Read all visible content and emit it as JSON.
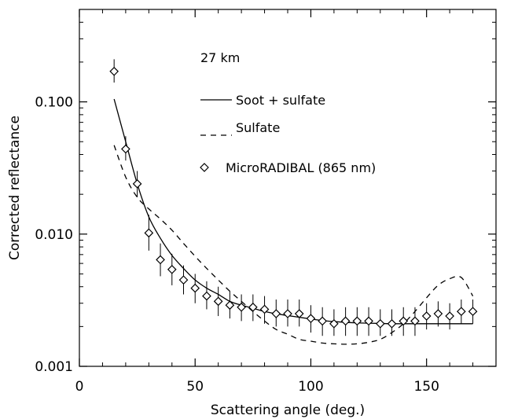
{
  "chart_data": {
    "type": "line",
    "annotation": "27 km",
    "xlabel": "Scattering angle (deg.)",
    "ylabel": "Corrected reflectance",
    "xlim": [
      0,
      180
    ],
    "ylim": [
      0.001,
      0.5
    ],
    "yscale": "log",
    "x_ticks": [
      0,
      50,
      100,
      150
    ],
    "y_ticks": [
      0.001,
      0.01,
      0.1
    ],
    "y_tick_labels": [
      "0.001",
      "0.010",
      "0.100"
    ],
    "legend_position": "top-right",
    "series": [
      {
        "name": "Soot + sulfate",
        "style": "solid",
        "x": [
          15,
          20,
          25,
          30,
          35,
          40,
          45,
          50,
          55,
          60,
          65,
          70,
          75,
          80,
          85,
          90,
          95,
          100,
          105,
          110,
          115,
          120,
          125,
          130,
          135,
          140,
          145,
          150,
          155,
          160,
          165,
          170
        ],
        "y": [
          0.105,
          0.05,
          0.024,
          0.0135,
          0.0093,
          0.0069,
          0.0055,
          0.0045,
          0.0039,
          0.0035,
          0.0031,
          0.0029,
          0.00275,
          0.0026,
          0.0025,
          0.00242,
          0.00235,
          0.00228,
          0.00222,
          0.00218,
          0.00215,
          0.00213,
          0.00212,
          0.00211,
          0.0021,
          0.0021,
          0.0021,
          0.0021,
          0.0021,
          0.0021,
          0.0021,
          0.0021
        ]
      },
      {
        "name": "Sulfate",
        "style": "dashed",
        "x": [
          15,
          20,
          25,
          30,
          35,
          40,
          45,
          50,
          55,
          60,
          65,
          70,
          75,
          80,
          85,
          90,
          95,
          100,
          105,
          110,
          115,
          120,
          125,
          130,
          135,
          140,
          145,
          150,
          155,
          160,
          165,
          170
        ],
        "y": [
          0.047,
          0.027,
          0.019,
          0.0155,
          0.013,
          0.0107,
          0.0085,
          0.0068,
          0.0055,
          0.0045,
          0.0037,
          0.0031,
          0.0026,
          0.0022,
          0.0019,
          0.00175,
          0.0016,
          0.00155,
          0.0015,
          0.00148,
          0.00147,
          0.00148,
          0.00152,
          0.0016,
          0.0018,
          0.0021,
          0.0026,
          0.0033,
          0.0041,
          0.0046,
          0.0047,
          0.0034
        ]
      },
      {
        "name": "MicroRADIBAL (865 nm)",
        "style": "markers",
        "marker": "diamond",
        "x": [
          15,
          20,
          25,
          30,
          35,
          40,
          45,
          50,
          55,
          60,
          65,
          70,
          75,
          80,
          85,
          90,
          95,
          100,
          105,
          110,
          115,
          120,
          125,
          130,
          135,
          140,
          145,
          150,
          155,
          160,
          165,
          170
        ],
        "y": [
          0.17,
          0.044,
          0.024,
          0.0102,
          0.0064,
          0.0054,
          0.0045,
          0.0039,
          0.0034,
          0.0031,
          0.0029,
          0.0028,
          0.0028,
          0.0027,
          0.0025,
          0.0025,
          0.0025,
          0.0023,
          0.0022,
          0.0021,
          0.0022,
          0.0022,
          0.0022,
          0.0021,
          0.0021,
          0.0022,
          0.0022,
          0.0024,
          0.0025,
          0.0024,
          0.0026,
          0.0026
        ],
        "err_low": [
          0.14,
          0.036,
          0.019,
          0.0075,
          0.0048,
          0.0041,
          0.0035,
          0.003,
          0.0027,
          0.0024,
          0.0023,
          0.0022,
          0.0022,
          0.0021,
          0.002,
          0.002,
          0.002,
          0.0018,
          0.0017,
          0.0017,
          0.0017,
          0.0017,
          0.0017,
          0.0017,
          0.0017,
          0.0017,
          0.0017,
          0.0019,
          0.002,
          0.0019,
          0.0021,
          0.0021
        ],
        "err_high": [
          0.21,
          0.055,
          0.03,
          0.014,
          0.0085,
          0.0071,
          0.0058,
          0.005,
          0.0044,
          0.004,
          0.0037,
          0.0035,
          0.0035,
          0.0034,
          0.0032,
          0.0032,
          0.0032,
          0.0029,
          0.0028,
          0.0027,
          0.0028,
          0.0028,
          0.0028,
          0.0027,
          0.0027,
          0.0028,
          0.0028,
          0.003,
          0.0031,
          0.003,
          0.0032,
          0.0032
        ]
      }
    ]
  }
}
